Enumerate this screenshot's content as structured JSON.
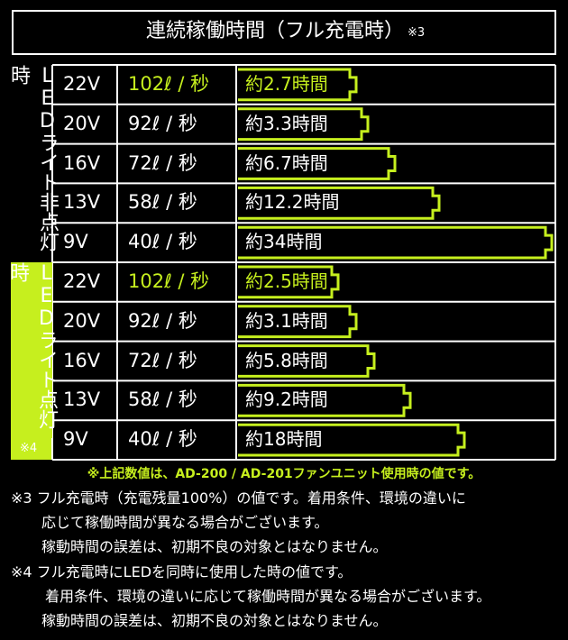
{
  "header": {
    "title": "連続稼働時間（フル充電時）",
    "note_mark": "※3"
  },
  "table": {
    "groups": [
      {
        "label": "LEDライト非点灯時"
      },
      {
        "label": "LEDライト点灯時",
        "note": "※4"
      }
    ],
    "rows": [
      [
        "22V",
        "102ℓ / 秒",
        "約2.7時間"
      ],
      [
        "20V",
        "92ℓ / 秒",
        "約3.3時間"
      ],
      [
        "16V",
        "72ℓ / 秒",
        "約6.7時間"
      ],
      [
        "13V",
        "58ℓ / 秒",
        "約12.2時間"
      ],
      [
        "9V",
        "40ℓ / 秒",
        "約34時間"
      ],
      [
        "22V",
        "102ℓ / 秒",
        "約2.5時間"
      ],
      [
        "20V",
        "92ℓ / 秒",
        "約3.1時間"
      ],
      [
        "16V",
        "72ℓ / 秒",
        "約5.8時間"
      ],
      [
        "13V",
        "58ℓ / 秒",
        "約9.2時間"
      ],
      [
        "9V",
        "40ℓ / 秒",
        "約18時間"
      ]
    ]
  },
  "footnote": "※上記数値は、AD-200 / AD-201ファンユニット使用時の値です。",
  "notes": [
    [
      "※3 フル充電時（充電残量100%）の値です。着用条件、環境の違いに",
      "応じて稼働時間が異なる場合がございます。",
      "稼動時間の誤差は、初期不良の対象とはなりません。"
    ],
    [
      "※4 フル充電時にLEDを同時に使用した時の値です。",
      "着用条件、環境の違いに応じて稼働時間が異なる場合がございます。",
      "稼動時間の誤差は、初期不良の対象とはなりません。"
    ]
  ]
}
